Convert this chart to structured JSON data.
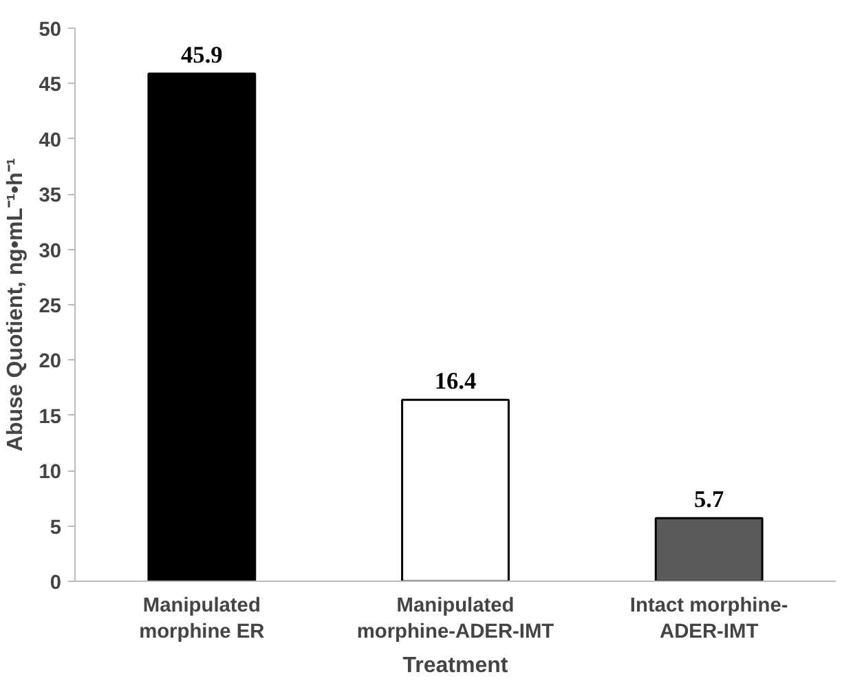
{
  "chart_data": {
    "type": "bar",
    "xlabel": "Treatment",
    "ylabel": "Abuse Quotient, ng•mL⁻¹•h⁻¹",
    "categories": [
      "Manipulated\nmorphine ER",
      "Manipulated\nmorphine-ADER-IMT",
      "Intact morphine-\nADER-IMT"
    ],
    "values": [
      45.9,
      16.4,
      5.7
    ],
    "colors": [
      "#000000",
      "#ffffff",
      "#5a5a5a"
    ],
    "ylim": [
      0,
      50
    ],
    "yticks": [
      0,
      5,
      10,
      15,
      20,
      25,
      30,
      35,
      40,
      45,
      50
    ],
    "grid": false,
    "data_labels": true
  }
}
